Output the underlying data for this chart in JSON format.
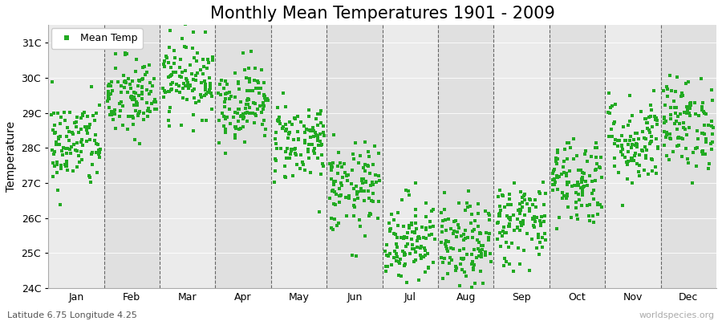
{
  "title": "Monthly Mean Temperatures 1901 - 2009",
  "ylabel": "Temperature",
  "xlabel_bottom": "Latitude 6.75 Longitude 4.25",
  "watermark": "worldspecies.org",
  "legend_label": "Mean Temp",
  "marker_color": "#22aa22",
  "bg_color": "#e8e8e8",
  "band_colors": [
    "#ebebeb",
    "#e0e0e0"
  ],
  "ylim": [
    24,
    31.5
  ],
  "yticks": [
    24,
    25,
    26,
    27,
    28,
    29,
    30,
    31
  ],
  "ytick_labels": [
    "24C",
    "25C",
    "26C",
    "27C",
    "28C",
    "29C",
    "30C",
    "31C"
  ],
  "months": [
    "Jan",
    "Feb",
    "Mar",
    "Apr",
    "May",
    "Jun",
    "Jul",
    "Aug",
    "Sep",
    "Oct",
    "Nov",
    "Dec"
  ],
  "n_years": 109,
  "seed": 42,
  "monthly_means": [
    28.1,
    29.4,
    30.0,
    29.3,
    28.2,
    26.8,
    25.4,
    25.2,
    25.9,
    27.1,
    28.2,
    28.7
  ],
  "monthly_stds": [
    0.65,
    0.6,
    0.55,
    0.55,
    0.58,
    0.65,
    0.65,
    0.6,
    0.62,
    0.65,
    0.65,
    0.65
  ],
  "title_fontsize": 15,
  "axis_label_fontsize": 10,
  "tick_fontsize": 9,
  "legend_fontsize": 9,
  "watermark_fontsize": 8,
  "caption_fontsize": 8,
  "figsize": [
    9.0,
    4.0
  ],
  "dpi": 100
}
